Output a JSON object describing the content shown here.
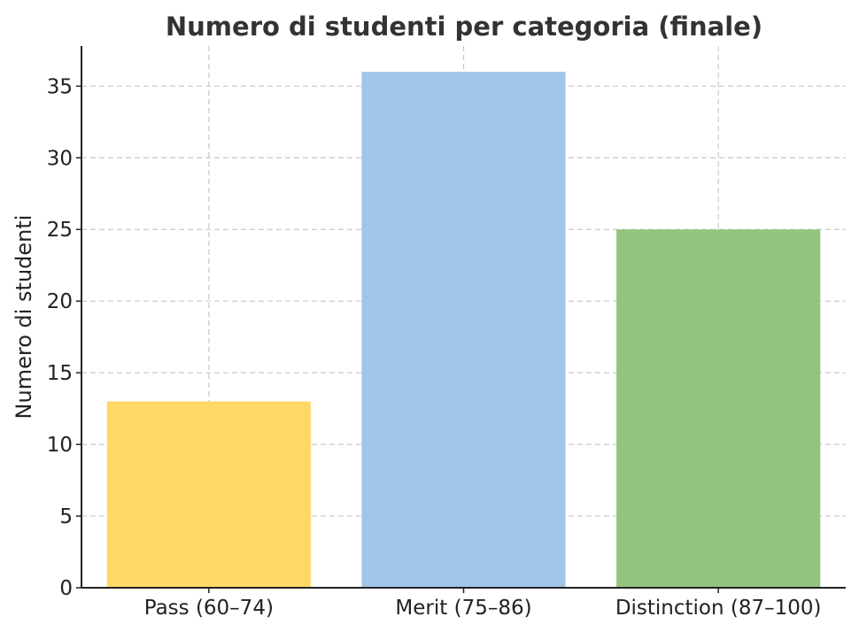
{
  "chart_data": {
    "type": "bar",
    "title": "Numero di studenti per categoria (finale)",
    "xlabel": "",
    "ylabel": "Numero di studenti",
    "categories": [
      "Pass (60–74)",
      "Merit (75–86)",
      "Distinction (87–100)"
    ],
    "values": [
      13,
      36,
      25
    ],
    "colors": [
      "#FFD966",
      "#9FC5E8",
      "#93C47D"
    ],
    "ylim": [
      0,
      37.8
    ],
    "yticks": [
      0,
      5,
      10,
      15,
      20,
      25,
      30,
      35
    ],
    "grid": true,
    "legend": "none"
  }
}
